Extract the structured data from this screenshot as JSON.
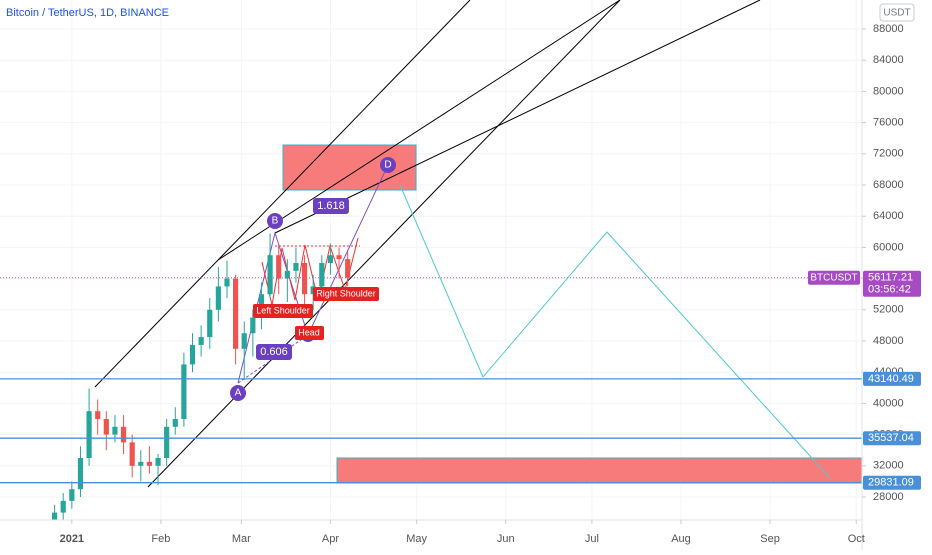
{
  "chart_data": {
    "type": "candlestick",
    "title": "Bitcoin / TetherUS, 1D, BINANCE",
    "currency": "USDT",
    "symbol": "BTCUSDT",
    "last_price": 56117.21,
    "countdown": "03:56:42",
    "x": [
      -9,
      -6,
      -3,
      0,
      3,
      6,
      9,
      12,
      15,
      18,
      21,
      24,
      27,
      30,
      33,
      36,
      39,
      42,
      45,
      48,
      51,
      54,
      57,
      60,
      63,
      66,
      69,
      72,
      75,
      78,
      81,
      84,
      87,
      90,
      93,
      96
    ],
    "open": [
      22500,
      23500,
      26000,
      27500,
      29000,
      33000,
      39000,
      38000,
      36000,
      37000,
      35000,
      32000,
      32500,
      32000,
      33000,
      37000,
      38000,
      45000,
      47500,
      48500,
      52000,
      55000,
      56000,
      47000,
      49000,
      51000,
      54000,
      59000,
      56000,
      57000,
      58000,
      54000,
      55000,
      58000,
      59000,
      58500
    ],
    "high": [
      24200,
      27000,
      28500,
      30000,
      34500,
      41900,
      40500,
      39000,
      38500,
      38500,
      36000,
      34000,
      34500,
      33500,
      38000,
      39500,
      46500,
      49000,
      50000,
      53500,
      57500,
      58300,
      56500,
      50500,
      52000,
      55500,
      61800,
      60500,
      58500,
      60000,
      59000,
      56500,
      59000,
      60500,
      60000,
      59500
    ],
    "low": [
      22000,
      23000,
      25000,
      26500,
      28000,
      32000,
      36000,
      34000,
      35000,
      33500,
      30500,
      30000,
      31000,
      29500,
      32000,
      36000,
      37000,
      44000,
      46000,
      47000,
      50500,
      53500,
      45000,
      43000,
      46000,
      49500,
      53500,
      54000,
      53000,
      55500,
      51500,
      52000,
      54000,
      56500,
      56000,
      55000
    ],
    "close": [
      23500,
      26000,
      27500,
      29000,
      33000,
      39000,
      38000,
      36000,
      37000,
      35000,
      32000,
      32500,
      32000,
      33000,
      37000,
      38000,
      45000,
      47500,
      48500,
      52000,
      55000,
      56000,
      47000,
      49000,
      51000,
      54000,
      59000,
      56000,
      57000,
      58000,
      54000,
      55000,
      58000,
      59000,
      58500,
      56117
    ],
    "up_color": "#26a69a",
    "down_color": "#ef5350",
    "xlim": [
      -25,
      275
    ],
    "xticks": [
      {
        "value": 0,
        "label": "2021"
      },
      {
        "value": 31,
        "label": "Feb"
      },
      {
        "value": 59,
        "label": "Mar"
      },
      {
        "value": 90,
        "label": "Apr"
      },
      {
        "value": 120,
        "label": "May"
      },
      {
        "value": 151,
        "label": "Jun"
      },
      {
        "value": 181,
        "label": "Jul"
      },
      {
        "value": 212,
        "label": "Aug"
      },
      {
        "value": 243,
        "label": "Sep"
      },
      {
        "value": 273,
        "label": "Oct"
      }
    ],
    "ylim": [
      25050,
      91720
    ],
    "yticks": [
      28000,
      32000,
      36000,
      40000,
      44000,
      48000,
      52000,
      56000,
      60000,
      64000,
      68000,
      72000,
      76000,
      80000,
      84000,
      88000
    ],
    "levels": [
      43140.49,
      35537.04,
      29831.09
    ],
    "level_color": "#4a90d9",
    "annotations": {
      "a": "A",
      "b": "B",
      "c": "C",
      "d": "D",
      "ratio_ad": "1.618",
      "ratio_ab": "0.606",
      "left_shoulder": "Left Shoulder",
      "head": "Head",
      "right_shoulder": "Right Shoulder"
    }
  }
}
